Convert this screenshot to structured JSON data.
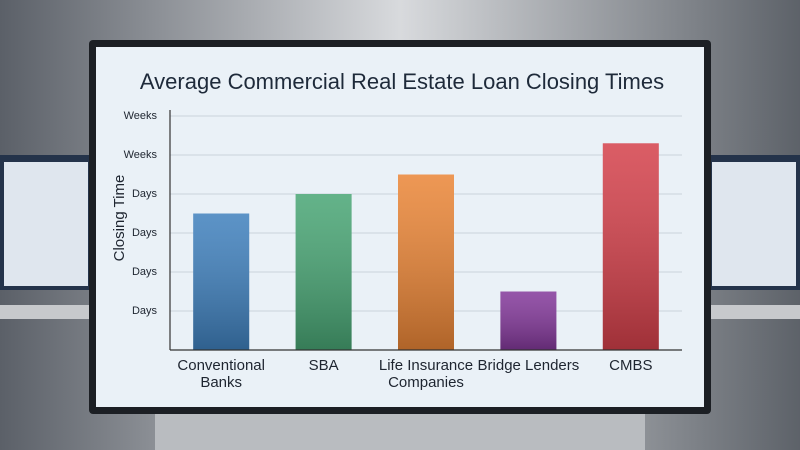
{
  "chart_data": {
    "type": "bar",
    "title": "Average Commercial Real Estate Loan Closing Times",
    "y_label": "Closing Time",
    "categories": [
      "Conventional Banks",
      "SBA",
      "Life Insurance Companies",
      "Bridge Lenders",
      "CMBS"
    ],
    "values": [
      3.5,
      4.0,
      4.5,
      1.5,
      5.3
    ],
    "colors": [
      "#3f80bd",
      "#48a574",
      "#ea8536",
      "#83389a",
      "#d4404a"
    ],
    "ylim": [
      0,
      6
    ],
    "yticks": [
      {
        "value": 1,
        "label": "Days"
      },
      {
        "value": 2,
        "label": "Days"
      },
      {
        "value": 3,
        "label": "Days"
      },
      {
        "value": 4,
        "label": "Days"
      },
      {
        "value": 5,
        "label": "Weeks"
      },
      {
        "value": 6,
        "label": "Weeks"
      }
    ],
    "grid": true
  }
}
